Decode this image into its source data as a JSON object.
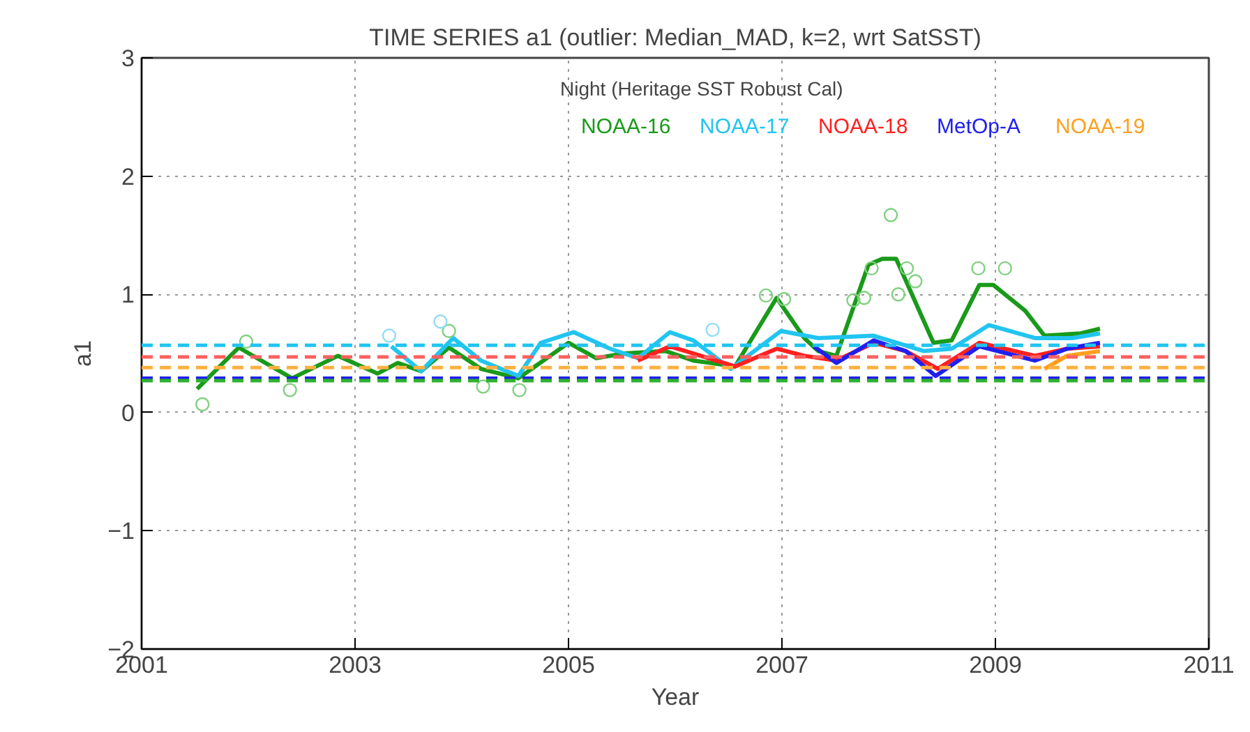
{
  "chart_data": {
    "type": "line",
    "title": "TIME SERIES a1 (outlier: Median_MAD, k=2, wrt SatSST)",
    "xlabel": "Year",
    "ylabel": "a1",
    "legend_title": "Night (Heritage SST Robust Cal)",
    "xlim": [
      2001,
      2011
    ],
    "xticks": [
      2001,
      2003,
      2005,
      2007,
      2009,
      2011
    ],
    "ylim": [
      -2,
      3
    ],
    "yticks": [
      -2,
      -1,
      0,
      1,
      2,
      3
    ],
    "grid": true,
    "legend": "top",
    "line_style": "solid",
    "marker": "none",
    "series": [
      {
        "name": "NOAA-16",
        "color": "#1a9a1a",
        "x": [
          2001.52,
          2001.91,
          2002.41,
          2002.84,
          2003.21,
          2003.4,
          2003.62,
          2003.88,
          2004.18,
          2004.53,
          2005.0,
          2005.26,
          2005.52,
          2005.91,
          2006.17,
          2006.56,
          2006.95,
          2007.21,
          2007.34,
          2007.51,
          2007.81,
          2007.94,
          2008.07,
          2008.42,
          2008.59,
          2008.85,
          2008.98,
          2009.28,
          2009.46,
          2009.8,
          2009.98
        ],
        "values": [
          0.2,
          0.55,
          0.29,
          0.48,
          0.33,
          0.42,
          0.35,
          0.55,
          0.37,
          0.29,
          0.59,
          0.46,
          0.5,
          0.52,
          0.44,
          0.39,
          0.97,
          0.63,
          0.52,
          0.48,
          1.25,
          1.3,
          1.3,
          0.59,
          0.61,
          1.08,
          1.08,
          0.86,
          0.65,
          0.67,
          0.71
        ]
      },
      {
        "name": "NOAA-17",
        "color": "#22c4f0",
        "x": [
          2003.34,
          2003.62,
          2003.92,
          2004.18,
          2004.53,
          2004.74,
          2005.05,
          2005.39,
          2005.65,
          2005.95,
          2006.17,
          2006.52,
          2006.99,
          2007.34,
          2007.86,
          2008.33,
          2008.59,
          2008.94,
          2009.37,
          2009.72,
          2009.98
        ],
        "values": [
          0.56,
          0.35,
          0.63,
          0.44,
          0.31,
          0.59,
          0.68,
          0.54,
          0.46,
          0.68,
          0.61,
          0.37,
          0.69,
          0.63,
          0.65,
          0.52,
          0.54,
          0.74,
          0.63,
          0.63,
          0.67
        ]
      },
      {
        "name": "NOAA-18",
        "color": "#ff2020",
        "x": [
          2005.65,
          2005.95,
          2006.17,
          2006.56,
          2006.95,
          2007.21,
          2007.51,
          2007.86,
          2008.16,
          2008.46,
          2008.85,
          2009.37,
          2009.67,
          2009.98
        ],
        "values": [
          0.44,
          0.56,
          0.5,
          0.39,
          0.54,
          0.48,
          0.44,
          0.59,
          0.52,
          0.37,
          0.59,
          0.48,
          0.54,
          0.56
        ]
      },
      {
        "name": "MetOp-A",
        "color": "#2020ee",
        "x": [
          2007.3,
          2007.51,
          2007.86,
          2008.16,
          2008.44,
          2008.85,
          2009.37,
          2009.67,
          2009.98
        ],
        "values": [
          0.56,
          0.42,
          0.61,
          0.52,
          0.31,
          0.56,
          0.44,
          0.54,
          0.59
        ]
      },
      {
        "name": "NOAA-19",
        "color": "#ffa020",
        "x": [
          2009.46,
          2009.67,
          2009.98
        ],
        "values": [
          0.37,
          0.48,
          0.52
        ]
      },
      {
        "type": "scatter",
        "marker": "circle",
        "color": "#80d080",
        "x": [
          2001.57,
          2001.98,
          2002.39,
          2003.88,
          2004.2,
          2004.54,
          2006.85,
          2007.02,
          2007.67,
          2007.77,
          2007.84,
          2008.02,
          2008.09,
          2008.17,
          2008.25,
          2008.84,
          2009.09
        ],
        "values": [
          0.07,
          0.6,
          0.19,
          0.69,
          0.22,
          0.19,
          0.99,
          0.96,
          0.95,
          0.97,
          1.22,
          1.67,
          1.0,
          1.22,
          1.11,
          1.22,
          1.22
        ]
      },
      {
        "type": "scatter",
        "marker": "circle",
        "color": "#90ddf8",
        "x": [
          2003.32,
          2003.8,
          2006.35
        ],
        "values": [
          0.65,
          0.77,
          0.7
        ]
      }
    ],
    "ref_lines": [
      {
        "axis": "y",
        "value": 0.57,
        "color": "#22c4f0",
        "line_style": "dashed"
      },
      {
        "axis": "y",
        "value": 0.47,
        "color": "#ff6060",
        "line_style": "dashed"
      },
      {
        "axis": "y",
        "value": 0.38,
        "color": "#ffb040",
        "line_style": "dashed"
      },
      {
        "axis": "y",
        "value": 0.29,
        "color": "#2020ee",
        "line_style": "dashed"
      },
      {
        "axis": "y",
        "value": 0.27,
        "color": "#30b030",
        "line_style": "dashed"
      }
    ]
  }
}
